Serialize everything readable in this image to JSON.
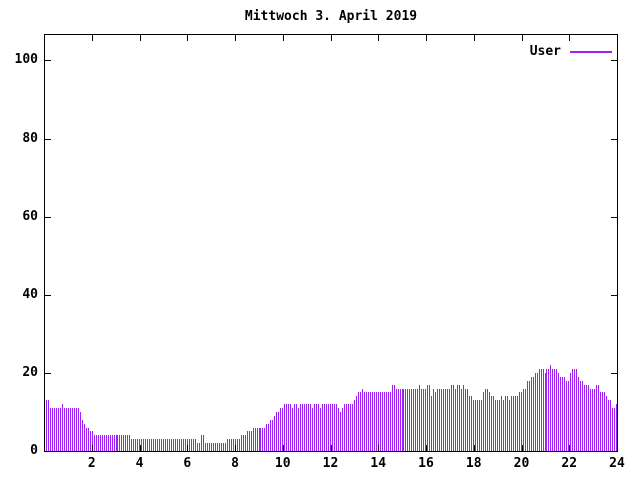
{
  "title": "Mittwoch 3. April 2019",
  "colors": {
    "series": "#a020f0",
    "axis": "#000000",
    "background": "#ffffff"
  },
  "legend": {
    "label": "User"
  },
  "chart_data": {
    "type": "bar",
    "title": "Mittwoch 3. April 2019",
    "xlabel": "",
    "ylabel": "",
    "x_unit": "hour_of_day",
    "interval_minutes": 5,
    "xlim": [
      0,
      24
    ],
    "ylim": [
      0,
      106.5
    ],
    "xticks": [
      2,
      4,
      6,
      8,
      10,
      12,
      14,
      16,
      18,
      20,
      22,
      24
    ],
    "yticks": [
      0,
      20,
      40,
      60,
      80,
      100
    ],
    "grid": false,
    "legend_position": "top-right-inside",
    "bar_style": "impulses",
    "series": [
      {
        "name": "User",
        "color": "#a020f0",
        "values": [
          13,
          13,
          11,
          11,
          11,
          11,
          11,
          11,
          12,
          11,
          11,
          11,
          11,
          11,
          11,
          11,
          11,
          10,
          8,
          7,
          6,
          6,
          5,
          5,
          4,
          4,
          4,
          4,
          4,
          4,
          4,
          4,
          4,
          4,
          4,
          4,
          4,
          4,
          4,
          4,
          4,
          4,
          4,
          3,
          3,
          3,
          3,
          3,
          3,
          3,
          3,
          3,
          3,
          3,
          3,
          3,
          3,
          3,
          3,
          3,
          3,
          3,
          3,
          3,
          3,
          3,
          3,
          3,
          3,
          3,
          3,
          3,
          3,
          3,
          3,
          3,
          2,
          2,
          4,
          4,
          2,
          2,
          2,
          2,
          2,
          2,
          2,
          2,
          2,
          2,
          2,
          3,
          3,
          3,
          3,
          3,
          3,
          3,
          4,
          4,
          4,
          5,
          5,
          5,
          6,
          6,
          6,
          6,
          6,
          6,
          6,
          7,
          7,
          8,
          8,
          9,
          10,
          10,
          11,
          11,
          12,
          12,
          12,
          12,
          11,
          12,
          12,
          11,
          12,
          12,
          12,
          12,
          12,
          12,
          11,
          12,
          12,
          12,
          11,
          12,
          12,
          12,
          12,
          12,
          12,
          12,
          12,
          11,
          10,
          11,
          12,
          12,
          12,
          12,
          12,
          13,
          14,
          15,
          15,
          16,
          15,
          15,
          15,
          15,
          15,
          15,
          15,
          15,
          15,
          15,
          15,
          15,
          15,
          15,
          17,
          17,
          16,
          16,
          16,
          16,
          16,
          16,
          16,
          16,
          16,
          16,
          16,
          16,
          17,
          16,
          16,
          16,
          17,
          17,
          14,
          16,
          15,
          16,
          16,
          16,
          16,
          16,
          16,
          16,
          17,
          17,
          16,
          17,
          17,
          16,
          17,
          16,
          16,
          14,
          14,
          13,
          13,
          13,
          13,
          13,
          15,
          16,
          16,
          15,
          14,
          14,
          13,
          13,
          13,
          14,
          13,
          14,
          14,
          13,
          14,
          14,
          14,
          14,
          15,
          15,
          16,
          16,
          18,
          18,
          19,
          19,
          20,
          20,
          21,
          21,
          21,
          20,
          21,
          21,
          22,
          21,
          21,
          21,
          20,
          19,
          19,
          19,
          18,
          18,
          20,
          21,
          21,
          21,
          19,
          18,
          18,
          17,
          17,
          17,
          16,
          16,
          16,
          17,
          17,
          15,
          15,
          15,
          14,
          13,
          13,
          11,
          11,
          12
        ]
      }
    ]
  }
}
